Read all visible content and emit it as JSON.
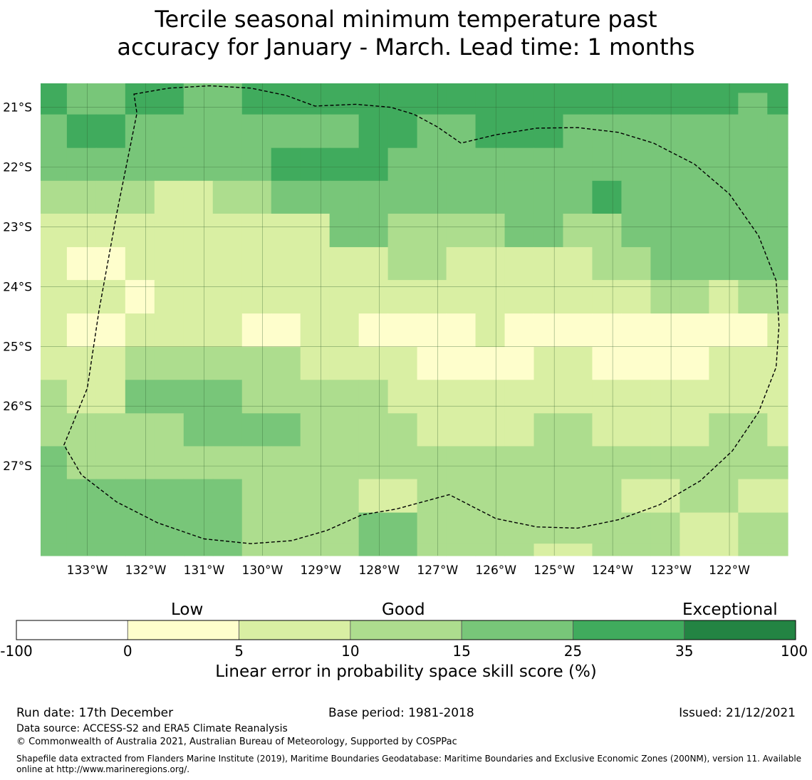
{
  "title": {
    "line1": "Tercile seasonal minimum temperature past",
    "line2": "accuracy for January - March. Lead time: 1 months"
  },
  "chart_data": {
    "type": "heatmap",
    "lon_labels": [
      "133°W",
      "132°W",
      "131°W",
      "130°W",
      "129°W",
      "128°W",
      "127°W",
      "126°W",
      "125°W",
      "124°W",
      "123°W",
      "122°W"
    ],
    "lat_labels": [
      "21°S",
      "22°S",
      "23°S",
      "24°S",
      "25°S",
      "26°S",
      "27°S"
    ],
    "lon_ticks": [
      -133,
      -132,
      -131,
      -130,
      -129,
      -128,
      -127,
      -126,
      -125,
      -124,
      -123,
      -122
    ],
    "lat_ticks": [
      -21,
      -22,
      -23,
      -24,
      -25,
      -26,
      -27
    ],
    "lon_range": [
      -133.8,
      -121.0
    ],
    "lat_range": [
      -28.5,
      -20.6
    ],
    "cell_lon_edges": [
      -133.8,
      -133.35,
      -132.85,
      -132.35,
      -131.85,
      -131.35,
      -130.85,
      -130.35,
      -129.85,
      -129.35,
      -128.85,
      -128.35,
      -127.85,
      -127.35,
      -126.85,
      -126.35,
      -125.85,
      -125.35,
      -124.85,
      -124.35,
      -123.85,
      -123.35,
      -122.85,
      -122.35,
      -121.85,
      -121.35,
      -121.0
    ],
    "cell_lat_edges": [
      -20.6,
      -20.76,
      -21.12,
      -21.68,
      -22.23,
      -22.78,
      -23.34,
      -23.89,
      -24.45,
      -25.01,
      -25.56,
      -26.12,
      -26.67,
      -27.22,
      -27.78,
      -28.3,
      -28.5
    ],
    "cell_class_grid": [
      [
        5,
        4,
        4,
        5,
        5,
        4,
        4,
        5,
        5,
        5,
        5,
        5,
        5,
        5,
        5,
        5,
        5,
        5,
        5,
        5,
        5,
        5,
        5,
        5,
        5,
        5
      ],
      [
        5,
        4,
        4,
        5,
        5,
        4,
        4,
        5,
        5,
        5,
        5,
        5,
        5,
        5,
        5,
        5,
        5,
        5,
        5,
        5,
        5,
        5,
        5,
        5,
        4,
        5
      ],
      [
        4,
        5,
        5,
        4,
        4,
        4,
        4,
        4,
        4,
        4,
        4,
        5,
        5,
        4,
        4,
        5,
        5,
        5,
        4,
        4,
        4,
        4,
        4,
        4,
        4,
        4
      ],
      [
        4,
        4,
        4,
        4,
        4,
        4,
        4,
        4,
        5,
        5,
        5,
        5,
        4,
        4,
        4,
        4,
        4,
        4,
        4,
        4,
        4,
        4,
        4,
        4,
        4,
        4
      ],
      [
        3,
        3,
        3,
        3,
        2,
        2,
        3,
        3,
        4,
        4,
        4,
        4,
        4,
        4,
        4,
        4,
        4,
        4,
        4,
        5,
        4,
        4,
        4,
        4,
        4,
        4
      ],
      [
        2,
        2,
        2,
        2,
        2,
        2,
        2,
        2,
        2,
        2,
        4,
        4,
        3,
        3,
        3,
        3,
        4,
        4,
        3,
        3,
        4,
        4,
        4,
        4,
        4,
        4
      ],
      [
        2,
        1,
        1,
        2,
        2,
        2,
        2,
        2,
        2,
        2,
        2,
        2,
        3,
        3,
        2,
        2,
        2,
        2,
        2,
        3,
        3,
        4,
        4,
        4,
        4,
        4
      ],
      [
        2,
        2,
        2,
        1,
        2,
        2,
        2,
        2,
        2,
        2,
        2,
        2,
        2,
        2,
        2,
        2,
        2,
        2,
        2,
        2,
        2,
        3,
        3,
        2,
        3,
        3
      ],
      [
        2,
        1,
        1,
        2,
        2,
        2,
        2,
        1,
        1,
        2,
        2,
        1,
        1,
        1,
        1,
        2,
        1,
        1,
        1,
        1,
        1,
        1,
        1,
        1,
        1,
        2
      ],
      [
        2,
        2,
        2,
        3,
        3,
        3,
        3,
        3,
        3,
        2,
        2,
        2,
        2,
        1,
        1,
        1,
        1,
        2,
        2,
        1,
        1,
        1,
        1,
        2,
        2,
        2
      ],
      [
        3,
        2,
        2,
        4,
        4,
        4,
        4,
        3,
        3,
        3,
        3,
        3,
        2,
        2,
        2,
        2,
        2,
        2,
        2,
        2,
        2,
        2,
        2,
        2,
        2,
        2
      ],
      [
        3,
        3,
        3,
        3,
        3,
        4,
        4,
        4,
        4,
        3,
        3,
        3,
        3,
        2,
        2,
        2,
        2,
        3,
        3,
        2,
        2,
        2,
        2,
        3,
        3,
        2
      ],
      [
        4,
        3,
        3,
        3,
        3,
        3,
        3,
        3,
        3,
        3,
        3,
        3,
        3,
        3,
        3,
        3,
        3,
        3,
        3,
        3,
        3,
        3,
        3,
        3,
        3,
        3
      ],
      [
        4,
        4,
        4,
        4,
        4,
        4,
        4,
        3,
        3,
        3,
        3,
        2,
        2,
        3,
        3,
        3,
        3,
        3,
        3,
        3,
        2,
        2,
        3,
        3,
        2,
        2
      ],
      [
        4,
        4,
        4,
        4,
        4,
        4,
        4,
        3,
        3,
        3,
        3,
        4,
        4,
        3,
        3,
        3,
        3,
        3,
        3,
        3,
        3,
        3,
        2,
        2,
        3,
        3
      ],
      [
        4,
        4,
        4,
        4,
        4,
        4,
        4,
        3,
        3,
        3,
        3,
        4,
        4,
        3,
        3,
        3,
        3,
        2,
        2,
        3,
        3,
        3,
        2,
        2,
        3,
        3
      ]
    ],
    "boundary_lonlat": [
      [
        -132.2,
        -20.78
      ],
      [
        -131.6,
        -20.68
      ],
      [
        -130.9,
        -20.64
      ],
      [
        -130.2,
        -20.68
      ],
      [
        -129.6,
        -20.8
      ],
      [
        -129.1,
        -20.98
      ],
      [
        -128.4,
        -20.95
      ],
      [
        -127.8,
        -21.0
      ],
      [
        -127.4,
        -21.12
      ],
      [
        -127.0,
        -21.33
      ],
      [
        -126.6,
        -21.6
      ],
      [
        -126.0,
        -21.46
      ],
      [
        -125.3,
        -21.35
      ],
      [
        -124.6,
        -21.34
      ],
      [
        -123.9,
        -21.42
      ],
      [
        -123.3,
        -21.6
      ],
      [
        -122.6,
        -21.95
      ],
      [
        -122.0,
        -22.45
      ],
      [
        -121.5,
        -23.15
      ],
      [
        -121.2,
        -23.9
      ],
      [
        -121.15,
        -24.65
      ],
      [
        -121.2,
        -25.35
      ],
      [
        -121.5,
        -26.1
      ],
      [
        -121.95,
        -26.75
      ],
      [
        -122.5,
        -27.25
      ],
      [
        -123.2,
        -27.65
      ],
      [
        -123.9,
        -27.9
      ],
      [
        -124.6,
        -28.04
      ],
      [
        -125.3,
        -28.02
      ],
      [
        -126.0,
        -27.88
      ],
      [
        -126.8,
        -27.48
      ],
      [
        -127.7,
        -27.72
      ],
      [
        -128.3,
        -27.82
      ],
      [
        -128.9,
        -28.08
      ],
      [
        -129.5,
        -28.25
      ],
      [
        -130.2,
        -28.3
      ],
      [
        -131.0,
        -28.22
      ],
      [
        -131.8,
        -27.95
      ],
      [
        -132.5,
        -27.6
      ],
      [
        -133.1,
        -27.15
      ],
      [
        -133.4,
        -26.65
      ],
      [
        -133.0,
        -25.7
      ],
      [
        -132.8,
        -24.4
      ],
      [
        -132.5,
        -22.8
      ],
      [
        -132.15,
        -21.1
      ],
      [
        -132.2,
        -20.78
      ]
    ],
    "colorbar": {
      "boundaries": [
        -100,
        0,
        5,
        10,
        15,
        25,
        35,
        100
      ],
      "tick_labels": [
        "-100",
        "0",
        "5",
        "10",
        "15",
        "25",
        "35",
        "100"
      ],
      "colors": [
        "#ffffff",
        "#fefecc",
        "#d9efa3",
        "#addd8e",
        "#78c679",
        "#40ab5d",
        "#238443"
      ],
      "category_labels": [
        "Low",
        "Good",
        "Exceptional"
      ],
      "title": "Linear error in probability space skill score (%)"
    }
  },
  "footer": {
    "run_date": "Run date: 17th December",
    "base_period": "Base period: 1981-2018",
    "issued": "Issued: 21/12/2021",
    "data_source": "Data source: ACCESS-S2 and ERA5 Climate Reanalysis",
    "copyright": "© Commonwealth of Australia 2021, Australian Bureau of Meteorology, Supported by COSPPac",
    "shapefile_line1": "Shapefile data extracted from Flanders Marine Institute (2019), Maritime Boundaries Geodatabase: Maritime Boundaries and Exclusive Economic Zones (200NM), version 11. Available",
    "shapefile_line2": "online at http://www.marineregions.org/."
  }
}
